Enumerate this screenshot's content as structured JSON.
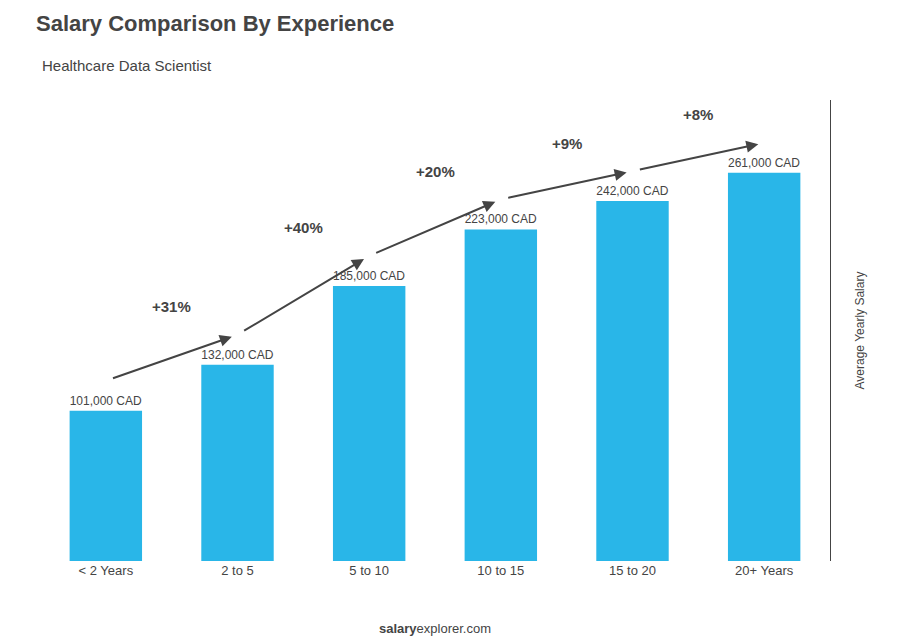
{
  "chart_data": {
    "type": "bar",
    "title": "Salary Comparison By Experience",
    "subtitle": "Healthcare Data Scientist",
    "categories": [
      "< 2 Years",
      "2 to 5",
      "5 to 10",
      "10 to 15",
      "15 to 20",
      "20+ Years"
    ],
    "values": [
      101000,
      132000,
      185000,
      223000,
      242000,
      261000
    ],
    "value_labels": [
      "101,000 CAD",
      "132,000 CAD",
      "185,000 CAD",
      "223,000 CAD",
      "242,000 CAD",
      "261,000 CAD"
    ],
    "data_labels": true,
    "annotations": [
      "+31%",
      "+40%",
      "+20%",
      "+9%",
      "+8%"
    ],
    "color": "#29b6e8",
    "ylabel": "Average Yearly Salary",
    "footer_bold": "salary",
    "footer_normal": "explorer.com",
    "ylim": [
      0,
      310000
    ],
    "tick_labels": "x",
    "grid": false
  }
}
